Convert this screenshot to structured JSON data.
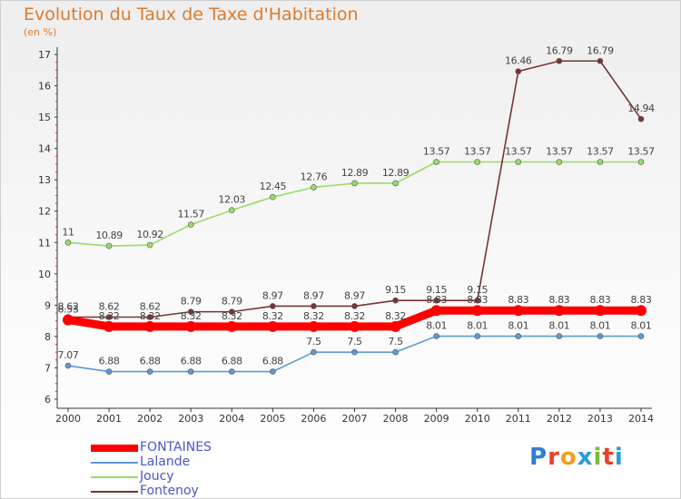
{
  "header": {
    "title": "Evolution du Taux de Taxe d'Habitation",
    "unit": "(en %)"
  },
  "logo": {
    "letters": [
      "P",
      "r",
      "o",
      "x",
      "i",
      "t",
      "i"
    ],
    "colors": [
      "#2f7fd0",
      "#e8402a",
      "#f0a020",
      "#2a9bd8",
      "#7ab83c",
      "#e8402a",
      "#2a9bd8"
    ]
  },
  "chart_data": {
    "type": "line",
    "title": "Evolution du Taux de Taxe d'Habitation",
    "ylabel": "(en %)",
    "xlabel": "",
    "x": [
      "2000",
      "2001",
      "2002",
      "2003",
      "2004",
      "2005",
      "2006",
      "2007",
      "2008",
      "2009",
      "2010",
      "2011",
      "2012",
      "2013",
      "2014"
    ],
    "ylim": [
      6,
      17
    ],
    "yticks": [
      "6",
      "7",
      "8",
      "9",
      "10",
      "11",
      "12",
      "13",
      "14",
      "15",
      "16",
      "17"
    ],
    "grid": false,
    "legend": "bottom-left",
    "series": [
      {
        "name": "FONTAINES",
        "color": "#ff0000",
        "values": [
          8.53,
          8.32,
          8.32,
          8.32,
          8.32,
          8.32,
          8.32,
          8.32,
          8.32,
          8.83,
          8.83,
          8.83,
          8.83,
          8.83,
          8.83
        ],
        "labels": [
          "8.53",
          "8.32",
          "8.32",
          "8.32",
          "8.32",
          "8.32",
          "8.32",
          "8.32",
          "8.32",
          "8.83",
          "8.83",
          "8.83",
          "8.83",
          "8.83",
          "8.83"
        ]
      },
      {
        "name": "Lalande",
        "color": "#5b9bd5",
        "values": [
          7.07,
          6.88,
          6.88,
          6.88,
          6.88,
          6.88,
          7.5,
          7.5,
          7.5,
          8.01,
          8.01,
          8.01,
          8.01,
          8.01,
          8.01
        ],
        "labels": [
          "7.07",
          "6.88",
          "6.88",
          "6.88",
          "6.88",
          "6.88",
          "7.5",
          "7.5",
          "7.5",
          "8.01",
          "8.01",
          "8.01",
          "8.01",
          "8.01",
          "8.01"
        ]
      },
      {
        "name": "Joucy",
        "color": "#99dd66",
        "values": [
          11,
          10.89,
          10.92,
          11.57,
          12.03,
          12.45,
          12.76,
          12.89,
          12.89,
          13.57,
          13.57,
          13.57,
          13.57,
          13.57,
          13.57
        ],
        "labels": [
          "11",
          "10.89",
          "10.92",
          "11.57",
          "12.03",
          "12.45",
          "12.76",
          "12.89",
          "12.89",
          "13.57",
          "13.57",
          "13.57",
          "13.57",
          "13.57",
          "13.57"
        ]
      },
      {
        "name": "Fontenoy",
        "color": "#7a3333",
        "values": [
          8.62,
          8.62,
          8.62,
          8.79,
          8.79,
          8.97,
          8.97,
          8.97,
          9.15,
          9.15,
          9.15,
          16.46,
          16.79,
          16.79,
          14.94
        ],
        "labels": [
          "8.62",
          "8.62",
          "8.62",
          "8.79",
          "8.79",
          "8.97",
          "8.97",
          "8.97",
          "9.15",
          "9.15",
          "9.15",
          "16.46",
          "16.79",
          "16.79",
          "14.94"
        ]
      }
    ]
  }
}
